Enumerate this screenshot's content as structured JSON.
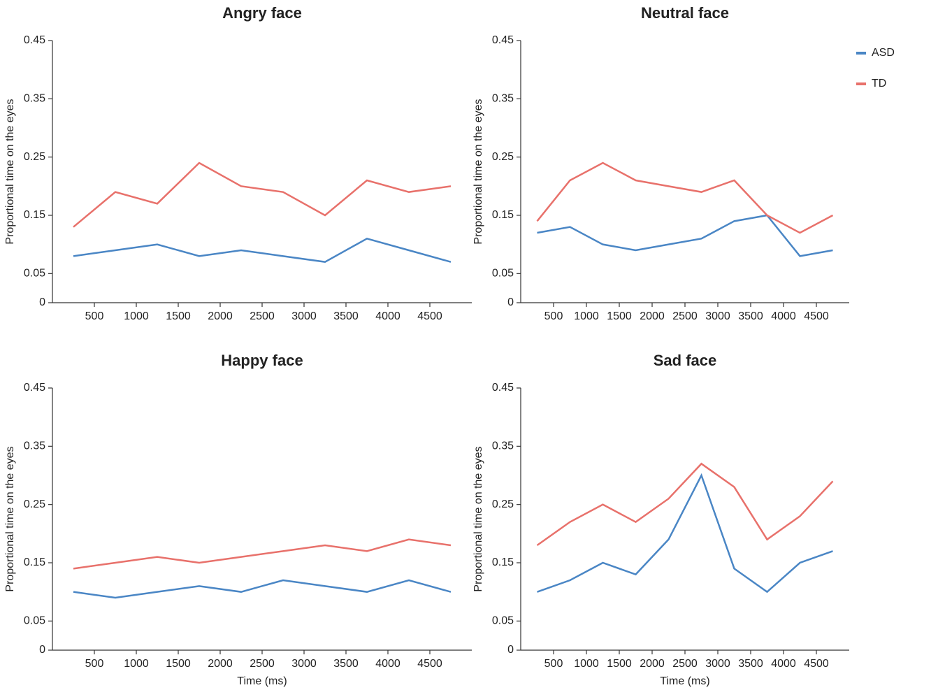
{
  "chart_data": [
    {
      "type": "line",
      "title": "Angry face",
      "ylabel": "Proportional time on the eyes",
      "x": [
        250,
        750,
        1250,
        1750,
        2250,
        2750,
        3250,
        3750,
        4250,
        4750
      ],
      "xlim": [
        0,
        5000
      ],
      "xticks": [
        500,
        1000,
        1500,
        2000,
        2500,
        3000,
        3500,
        4000,
        4500
      ],
      "ylim": [
        0,
        0.45
      ],
      "yticks": [
        0,
        0.05,
        0.15,
        0.25,
        0.35,
        0.45
      ],
      "series": [
        {
          "name": "ASD",
          "color": "#4a86c5",
          "values": [
            0.08,
            0.09,
            0.1,
            0.08,
            0.09,
            0.08,
            0.07,
            0.11,
            0.09,
            0.07
          ]
        },
        {
          "name": "TD",
          "color": "#e8716b",
          "values": [
            0.13,
            0.19,
            0.17,
            0.24,
            0.2,
            0.19,
            0.15,
            0.21,
            0.19,
            0.2
          ]
        }
      ]
    },
    {
      "type": "line",
      "title": "Neutral face",
      "ylabel": "Proportional time on the eyes",
      "legend": "upper right",
      "x": [
        250,
        750,
        1250,
        1750,
        2250,
        2750,
        3250,
        3750,
        4250,
        4750
      ],
      "xlim": [
        0,
        5000
      ],
      "xticks": [
        500,
        1000,
        1500,
        2000,
        2500,
        3000,
        3500,
        4000,
        4500
      ],
      "ylim": [
        0,
        0.45
      ],
      "yticks": [
        0,
        0.05,
        0.15,
        0.25,
        0.35,
        0.45
      ],
      "series": [
        {
          "name": "ASD",
          "color": "#4a86c5",
          "values": [
            0.12,
            0.13,
            0.1,
            0.09,
            0.1,
            0.11,
            0.14,
            0.15,
            0.08,
            0.09
          ]
        },
        {
          "name": "TD",
          "color": "#e8716b",
          "values": [
            0.14,
            0.21,
            0.24,
            0.21,
            0.2,
            0.19,
            0.21,
            0.15,
            0.12,
            0.15
          ]
        }
      ]
    },
    {
      "type": "line",
      "title": "Happy face",
      "ylabel": "Proportional time on the eyes",
      "xlabel": "Time (ms)",
      "x": [
        250,
        750,
        1250,
        1750,
        2250,
        2750,
        3250,
        3750,
        4250,
        4750
      ],
      "xlim": [
        0,
        5000
      ],
      "xticks": [
        500,
        1000,
        1500,
        2000,
        2500,
        3000,
        3500,
        4000,
        4500
      ],
      "ylim": [
        0,
        0.45
      ],
      "yticks": [
        0,
        0.05,
        0.15,
        0.25,
        0.35,
        0.45
      ],
      "series": [
        {
          "name": "ASD",
          "color": "#4a86c5",
          "values": [
            0.1,
            0.09,
            0.1,
            0.11,
            0.1,
            0.12,
            0.11,
            0.1,
            0.12,
            0.1
          ]
        },
        {
          "name": "TD",
          "color": "#e8716b",
          "values": [
            0.14,
            0.15,
            0.16,
            0.15,
            0.16,
            0.17,
            0.18,
            0.17,
            0.19,
            0.18
          ]
        }
      ]
    },
    {
      "type": "line",
      "title": "Sad face",
      "ylabel": "Proportional time on the eyes",
      "xlabel": "Time (ms)",
      "x": [
        250,
        750,
        1250,
        1750,
        2250,
        2750,
        3250,
        3750,
        4250,
        4750
      ],
      "xlim": [
        0,
        5000
      ],
      "xticks": [
        500,
        1000,
        1500,
        2000,
        2500,
        3000,
        3500,
        4000,
        4500
      ],
      "ylim": [
        0,
        0.45
      ],
      "yticks": [
        0,
        0.05,
        0.15,
        0.25,
        0.35,
        0.45
      ],
      "series": [
        {
          "name": "ASD",
          "color": "#4a86c5",
          "values": [
            0.1,
            0.12,
            0.15,
            0.13,
            0.19,
            0.3,
            0.14,
            0.1,
            0.15,
            0.17
          ]
        },
        {
          "name": "TD",
          "color": "#e8716b",
          "values": [
            0.18,
            0.22,
            0.25,
            0.22,
            0.26,
            0.32,
            0.28,
            0.19,
            0.23,
            0.29
          ]
        }
      ]
    }
  ]
}
